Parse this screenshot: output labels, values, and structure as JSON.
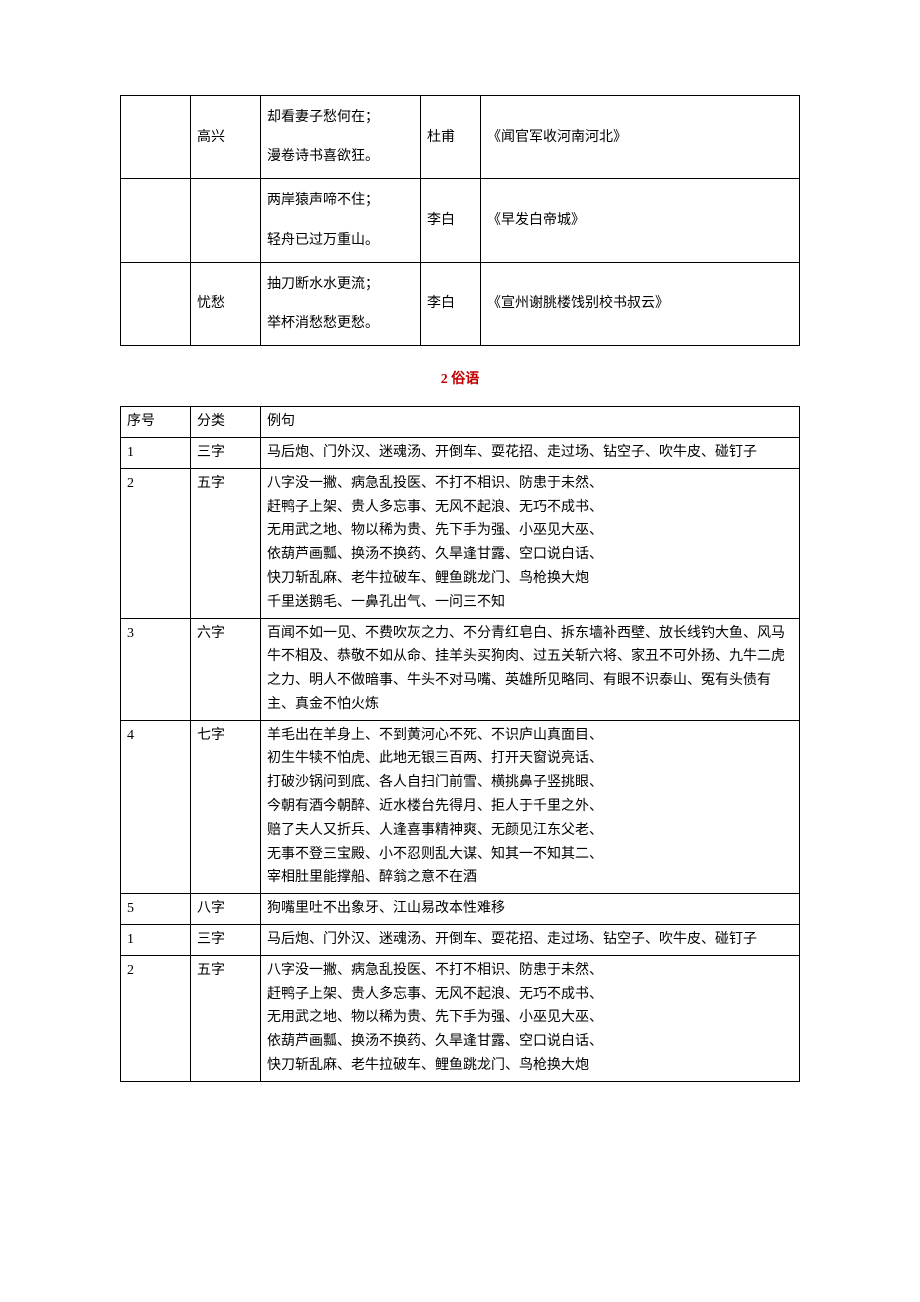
{
  "table1": {
    "rows": [
      {
        "c1": "",
        "c2": "高兴",
        "c3": "却看妻子愁何在；漫卷诗书喜欲狂。",
        "c4": "杜甫",
        "c5": "《闻官军收河南河北》"
      },
      {
        "c1": "",
        "c2": "",
        "c3": "两岸猿声啼不住；轻舟已过万重山。",
        "c4": "李白",
        "c5": "《早发白帝城》"
      },
      {
        "c1": "",
        "c2": "忧愁",
        "c3": "抽刀断水水更流；举杯消愁愁更愁。",
        "c4": "李白",
        "c5": "《宣州谢朓楼饯别校书叔云》"
      }
    ]
  },
  "section_title": "2 俗语",
  "table2": {
    "header": {
      "c1": "序号",
      "c2": "分类",
      "c3": "例句"
    },
    "rows": [
      {
        "c1": "1",
        "c2": "三字",
        "c3": "马后炮、门外汉、迷魂汤、开倒车、耍花招、走过场、钻空子、吹牛皮、碰钉子"
      },
      {
        "c1": "2",
        "c2": "五字",
        "c3": "八字没一撇、病急乱投医、不打不相识、防患于未然、\n赶鸭子上架、贵人多忘事、无风不起浪、无巧不成书、\n无用武之地、物以稀为贵、先下手为强、小巫见大巫、\n依葫芦画瓢、换汤不换药、久旱逢甘露、空口说白话、\n快刀斩乱麻、老牛拉破车、鲤鱼跳龙门、鸟枪换大炮\n千里送鹅毛、一鼻孔出气、一问三不知"
      },
      {
        "c1": "3",
        "c2": "六字",
        "c3": "百闻不如一见、不费吹灰之力、不分青红皂白、拆东墙补西壁、放长线钓大鱼、风马牛不相及、恭敬不如从命、挂羊头买狗肉、过五关斩六将、家丑不可外扬、九牛二虎之力、明人不做暗事、牛头不对马嘴、英雄所见略同、有眼不识泰山、冤有头债有主、真金不怕火炼"
      },
      {
        "c1": "4",
        "c2": "七字",
        "c3": "羊毛出在羊身上、不到黄河心不死、不识庐山真面目、\n初生牛犊不怕虎、此地无银三百两、打开天窗说亮话、\n打破沙锅问到底、各人自扫门前雪、横挑鼻子竖挑眼、\n今朝有酒今朝醉、近水楼台先得月、拒人于千里之外、\n赔了夫人又折兵、人逢喜事精神爽、无颜见江东父老、\n无事不登三宝殿、小不忍则乱大谋、知其一不知其二、\n宰相肚里能撑船、醉翁之意不在酒"
      },
      {
        "c1": "5",
        "c2": "八字",
        "c3": "狗嘴里吐不出象牙、江山易改本性难移"
      },
      {
        "c1": "1",
        "c2": "三字",
        "c3": "马后炮、门外汉、迷魂汤、开倒车、耍花招、走过场、钻空子、吹牛皮、碰钉子"
      },
      {
        "c1": "2",
        "c2": "五字",
        "c3": "八字没一撇、病急乱投医、不打不相识、防患于未然、\n赶鸭子上架、贵人多忘事、无风不起浪、无巧不成书、\n无用武之地、物以稀为贵、先下手为强、小巫见大巫、\n依葫芦画瓢、换汤不换药、久旱逢甘露、空口说白话、\n快刀斩乱麻、老牛拉破车、鲤鱼跳龙门、鸟枪换大炮"
      }
    ]
  }
}
